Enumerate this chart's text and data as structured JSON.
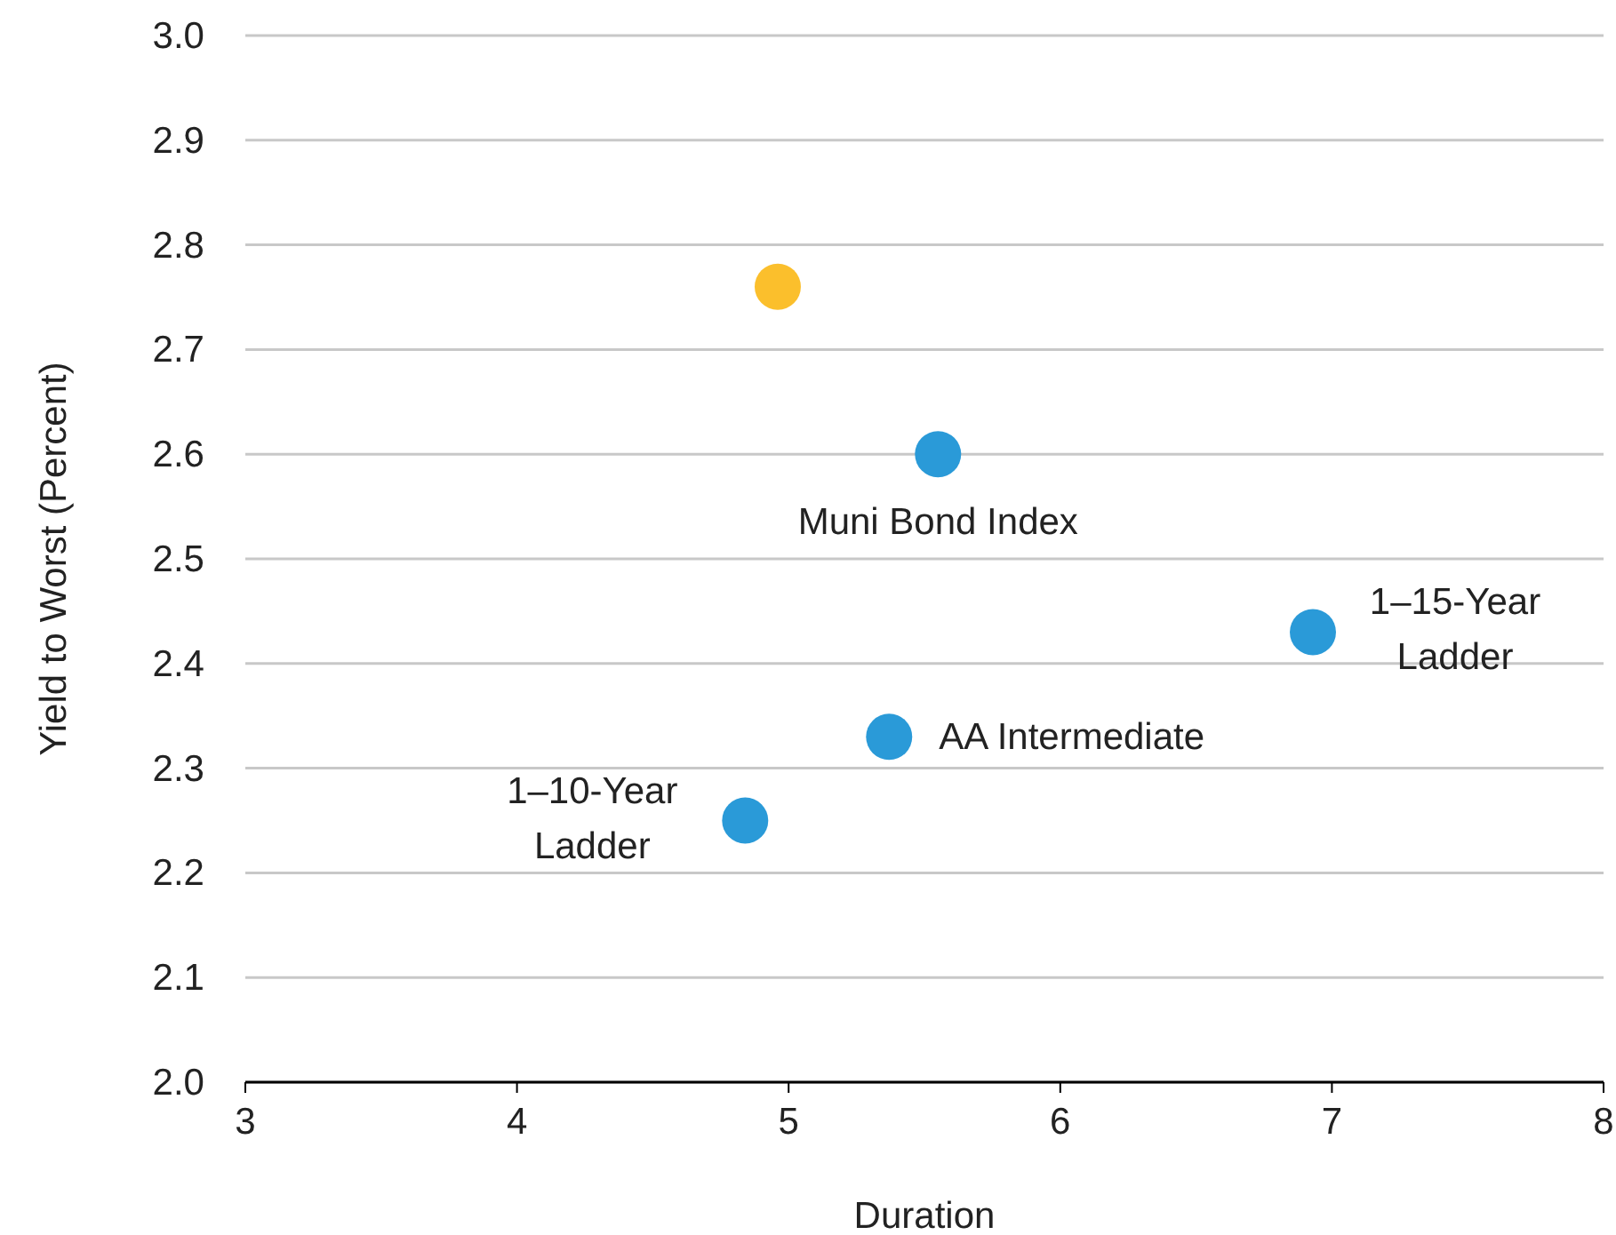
{
  "chart_data": {
    "type": "scatter",
    "xlabel": "Duration",
    "ylabel": "Yield to Worst (Percent)",
    "x": [
      4.96,
      5.55,
      6.93,
      5.37,
      4.84
    ],
    "values": [
      2.76,
      2.6,
      2.43,
      2.33,
      2.25
    ],
    "colors": [
      "#fbbf2c",
      "#2a9ad8",
      "#2a9ad8",
      "#2a9ad8",
      "#2a9ad8"
    ],
    "xlim": [
      3,
      8
    ],
    "xticks": [
      3,
      4,
      5,
      6,
      7,
      8
    ],
    "ylim": [
      2.0,
      3.0
    ],
    "yticks": [
      {
        "value": 2.0,
        "label": "2.0"
      },
      {
        "value": 2.1,
        "label": "2.1"
      },
      {
        "value": 2.2,
        "label": "2.2"
      },
      {
        "value": 2.3,
        "label": "2.3"
      },
      {
        "value": 2.4,
        "label": "2.4"
      },
      {
        "value": 2.5,
        "label": "2.5"
      },
      {
        "value": 2.6,
        "label": "2.6"
      },
      {
        "value": 2.7,
        "label": "2.7"
      },
      {
        "value": 2.8,
        "label": "2.8"
      },
      {
        "value": 2.9,
        "label": "2.9"
      },
      {
        "value": 3.0,
        "label": "3.0"
      }
    ],
    "grid": "y",
    "marker": "circle",
    "annotations": [
      {
        "text": "Muni Bond Index",
        "x": 5.55,
        "y": 2.6
      },
      {
        "text": "1–15-Year Ladder",
        "x": 6.93,
        "y": 2.43
      },
      {
        "text": "AA Intermediate",
        "x": 5.37,
        "y": 2.33
      },
      {
        "text": "1–10-Year Ladder",
        "x": 4.84,
        "y": 2.25
      }
    ]
  }
}
